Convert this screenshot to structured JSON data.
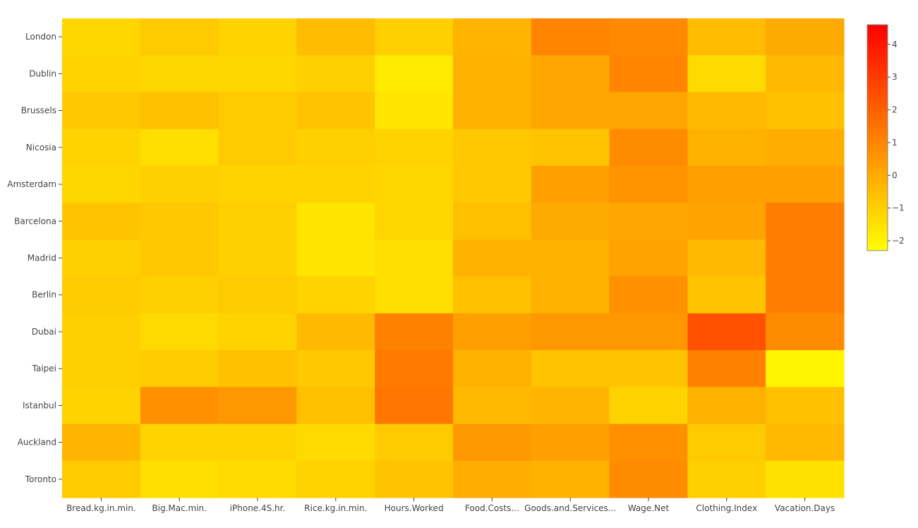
{
  "chart_data": {
    "type": "heatmap",
    "title": "",
    "xlabel": "",
    "ylabel": "",
    "x_categories": [
      "Bread.kg.in.min.",
      "Big.Mac.min.",
      "iPhone.4S.hr.",
      "Rice.kg.in.min.",
      "Hours.Worked",
      "Food.Costs...",
      "Goods.and.Services...",
      "Wage.Net",
      "Clothing.Index",
      "Vacation.Days"
    ],
    "y_categories": [
      "London",
      "Dublin",
      "Brussels",
      "Nicosia",
      "Amsterdam",
      "Barcelona",
      "Madrid",
      "Berlin",
      "Dubai",
      "Taipei",
      "Istanbul",
      "Auckland",
      "Toronto"
    ],
    "z": [
      [
        -1.2,
        -0.9,
        -1.1,
        -0.5,
        -1.0,
        -0.3,
        1.0,
        0.9,
        -0.5,
        0.0
      ],
      [
        -1.1,
        -1.2,
        -1.2,
        -1.0,
        -1.7,
        -0.2,
        0.1,
        1.0,
        -1.3,
        -0.4
      ],
      [
        -0.8,
        -0.6,
        -0.9,
        -0.7,
        -1.6,
        -0.2,
        0.1,
        0.1,
        -0.4,
        -0.6
      ],
      [
        -1.1,
        -1.4,
        -0.9,
        -1.0,
        -1.1,
        -0.8,
        -0.7,
        0.8,
        -0.2,
        -0.1
      ],
      [
        -1.2,
        -1.0,
        -1.1,
        -1.1,
        -1.2,
        -0.8,
        0.3,
        0.6,
        0.3,
        0.3
      ],
      [
        -0.7,
        -0.8,
        -1.0,
        -1.6,
        -1.2,
        -0.6,
        0.0,
        0.1,
        0.2,
        1.2
      ],
      [
        -1.0,
        -0.8,
        -1.0,
        -1.6,
        -1.4,
        -0.2,
        -0.2,
        0.2,
        -0.4,
        1.2
      ],
      [
        -0.9,
        -1.0,
        -0.9,
        -1.1,
        -1.4,
        -0.6,
        -0.2,
        0.7,
        -0.7,
        1.2
      ],
      [
        -1.0,
        -1.3,
        -1.1,
        -0.4,
        1.1,
        0.3,
        0.5,
        0.5,
        2.4,
        0.8
      ],
      [
        -1.0,
        -0.9,
        -0.6,
        -0.8,
        1.3,
        -0.2,
        -0.7,
        -0.7,
        1.1,
        -2.0
      ],
      [
        -1.1,
        0.7,
        0.5,
        -0.6,
        1.4,
        -0.4,
        -0.3,
        -1.1,
        -0.2,
        -0.6
      ],
      [
        -0.3,
        -1.1,
        -1.1,
        -1.3,
        -0.9,
        0.5,
        0.3,
        0.7,
        -0.9,
        -0.4
      ],
      [
        -0.9,
        -1.4,
        -1.3,
        -1.1,
        -0.7,
        -0.1,
        -0.2,
        0.8,
        -1.0,
        -1.5
      ]
    ],
    "zlim": [
      -2.3,
      4.6
    ],
    "colorbar_ticks": [
      -2,
      -1,
      0,
      1,
      2,
      3,
      4
    ],
    "colorbar_tick_labels": [
      "−2",
      "−1",
      "0",
      "1",
      "2",
      "3",
      "4"
    ],
    "colorscale": [
      "#ffff00",
      "#ffcc00",
      "#ff9900",
      "#ff6600",
      "#ff3300",
      "#ff0000"
    ],
    "grid": false,
    "legend": "colorbar-right"
  }
}
